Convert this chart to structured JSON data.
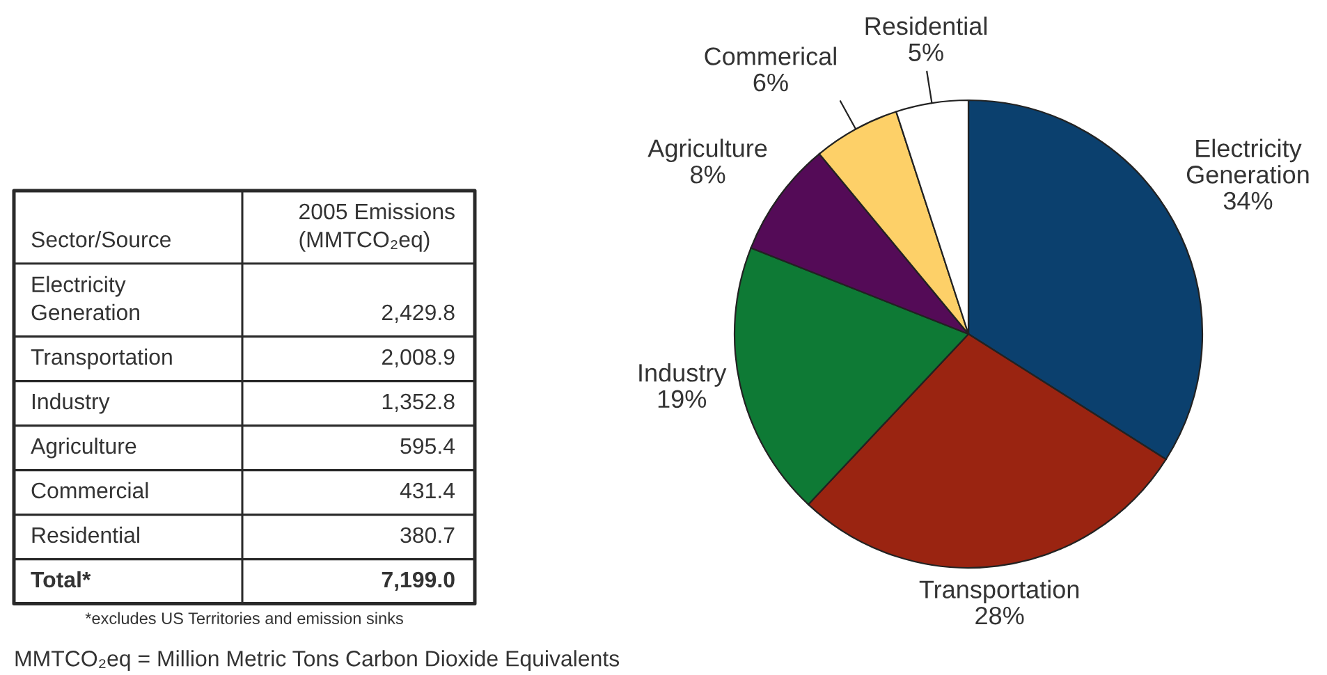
{
  "chart_data": [
    {
      "type": "other",
      "xlabel": "Sector/Source",
      "categories": [
        "Electricity Generation",
        "Transportation",
        "Industry",
        "Agriculture",
        "Commercial",
        "Residential",
        "Total*"
      ],
      "series": [
        {
          "name": "2005 Emissions (MMTCO₂eq)",
          "values": [
            2429.8,
            2008.9,
            1352.8,
            595.4,
            431.4,
            380.7,
            7199.0
          ],
          "value_labels": [
            "2,429.8",
            "2,008.9",
            "1,352.8",
            "595.4",
            "431.4",
            "380.7",
            "7,199.0"
          ]
        }
      ],
      "annotations": [
        "*excludes US Territories and emission sinks",
        "MMTCO₂eq = Million Metric Tons Carbon Dioxide Equivalents"
      ]
    },
    {
      "type": "pie",
      "categories": [
        "Electricity Generation",
        "Transportation",
        "Industry",
        "Agriculture",
        "Commerical",
        "Residential"
      ],
      "values": [
        34,
        28,
        19,
        8,
        6,
        5
      ],
      "colors": [
        "#0b406e",
        "#9a2411",
        "#0e7a35",
        "#540b57",
        "#fdd068",
        "#ffffff"
      ],
      "value_labels": [
        "34%",
        "28%",
        "19%",
        "8%",
        "6%",
        "5%"
      ]
    }
  ]
}
